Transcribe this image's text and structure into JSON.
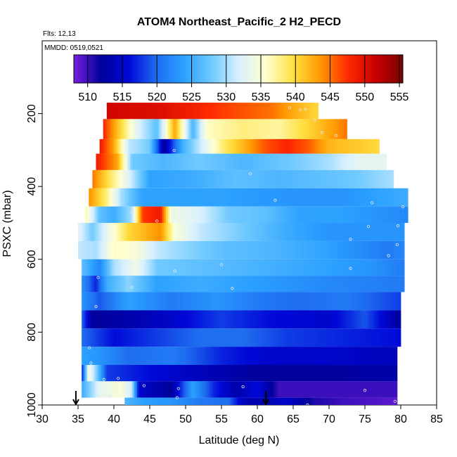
{
  "chart_data": {
    "type": "heatmap",
    "title": "ATOM4 Northeast_Pacific_2 H2_PECD",
    "notes": [
      "Flts: 12,13",
      "MMDD: 0519,0521"
    ],
    "xlabel": "Latitude (deg N)",
    "ylabel": "PSXC (mbar)",
    "xlim": [
      30,
      85
    ],
    "ylim": [
      1000,
      0
    ],
    "x_ticks": [
      30,
      35,
      40,
      45,
      50,
      55,
      60,
      65,
      70,
      75,
      80,
      85
    ],
    "y_ticks": [
      200,
      400,
      600,
      800,
      1000
    ],
    "colorbar": {
      "min": 508,
      "max": 555.5,
      "ticks": [
        510,
        515,
        520,
        525,
        530,
        535,
        540,
        545,
        550,
        555
      ],
      "colors": [
        "#7a1fe0",
        "#00009a",
        "#0008d8",
        "#1e6cf0",
        "#2aa0ff",
        "#6cc8ff",
        "#d8f0ff",
        "#ffffd0",
        "#ffe040",
        "#ff9800",
        "#ff2a00",
        "#c80000",
        "#7a0000"
      ]
    },
    "arrows": [
      {
        "x": 34.7
      },
      {
        "x": 61.2
      }
    ],
    "bands": [
      {
        "p_min": 170,
        "p_max": 215,
        "lat_start": 39.0,
        "lat_end": 68.5,
        "stops": [
          [
            39.0,
            551
          ],
          [
            47.0,
            550
          ],
          [
            55.0,
            547
          ],
          [
            62.0,
            545
          ],
          [
            68.5,
            540
          ]
        ]
      },
      {
        "p_min": 215,
        "p_max": 270,
        "lat_start": 38.5,
        "lat_end": 72.5,
        "stops": [
          [
            38.5,
            548
          ],
          [
            41.0,
            540
          ],
          [
            43.5,
            532
          ],
          [
            46.0,
            527
          ],
          [
            48.5,
            543
          ],
          [
            51.0,
            526
          ],
          [
            53.0,
            536
          ],
          [
            58.0,
            538
          ],
          [
            63.0,
            537
          ],
          [
            68.0,
            541
          ],
          [
            72.5,
            545
          ]
        ]
      },
      {
        "p_min": 270,
        "p_max": 310,
        "lat_start": 38.0,
        "lat_end": 77.0,
        "stops": [
          [
            38.0,
            549
          ],
          [
            40.0,
            543
          ],
          [
            42.0,
            531
          ],
          [
            45.0,
            528
          ],
          [
            47.0,
            512
          ],
          [
            49.5,
            525
          ],
          [
            52.0,
            531
          ],
          [
            55.0,
            538
          ],
          [
            58.0,
            542
          ],
          [
            61.0,
            546
          ],
          [
            64.0,
            548
          ],
          [
            67.0,
            546
          ],
          [
            70.0,
            542
          ],
          [
            77.0,
            540
          ]
        ]
      },
      {
        "p_min": 310,
        "p_max": 355,
        "lat_start": 37.5,
        "lat_end": 78.0,
        "stops": [
          [
            37.5,
            549
          ],
          [
            40.5,
            543
          ],
          [
            42.5,
            528
          ],
          [
            47.0,
            526
          ],
          [
            52.0,
            528
          ],
          [
            58.0,
            526
          ],
          [
            65.0,
            528
          ],
          [
            70.0,
            530
          ],
          [
            74.0,
            533
          ],
          [
            78.0,
            533
          ]
        ]
      },
      {
        "p_min": 355,
        "p_max": 405,
        "lat_start": 37.0,
        "lat_end": 79.0,
        "stops": [
          [
            37.0,
            545
          ],
          [
            39.0,
            540
          ],
          [
            41.5,
            534
          ],
          [
            45.0,
            524
          ],
          [
            51.0,
            525
          ],
          [
            57.0,
            527
          ],
          [
            63.0,
            526
          ],
          [
            69.0,
            527
          ],
          [
            74.0,
            528
          ],
          [
            79.0,
            530
          ]
        ]
      },
      {
        "p_min": 405,
        "p_max": 455,
        "lat_start": 36.5,
        "lat_end": 81.0,
        "stops": [
          [
            36.5,
            544
          ],
          [
            39.0,
            538
          ],
          [
            41.0,
            530
          ],
          [
            44.0,
            524
          ],
          [
            55.0,
            524
          ],
          [
            65.0,
            523
          ],
          [
            72.0,
            523
          ],
          [
            81.0,
            525
          ]
        ]
      },
      {
        "p_min": 455,
        "p_max": 500,
        "lat_start": 36.0,
        "lat_end": 81.0,
        "stops": [
          [
            36.0,
            537
          ],
          [
            38.0,
            527
          ],
          [
            40.0,
            525
          ],
          [
            42.5,
            530
          ],
          [
            44.0,
            547
          ],
          [
            46.5,
            549
          ],
          [
            48.0,
            534
          ],
          [
            52.0,
            532
          ],
          [
            56.0,
            528
          ],
          [
            61.0,
            527
          ],
          [
            66.0,
            524
          ],
          [
            72.0,
            524
          ],
          [
            81.0,
            522
          ]
        ]
      },
      {
        "p_min": 500,
        "p_max": 550,
        "lat_start": 35.0,
        "lat_end": 80.5,
        "stops": [
          [
            35.0,
            533
          ],
          [
            37.0,
            528
          ],
          [
            39.0,
            533
          ],
          [
            42.0,
            540
          ],
          [
            46.5,
            544
          ],
          [
            48.5,
            535
          ],
          [
            52.0,
            531
          ],
          [
            58.0,
            528
          ],
          [
            64.0,
            525
          ],
          [
            70.0,
            523
          ],
          [
            76.0,
            523
          ],
          [
            80.5,
            523
          ]
        ]
      },
      {
        "p_min": 550,
        "p_max": 600,
        "lat_start": 35.0,
        "lat_end": 80.5,
        "stops": [
          [
            35.0,
            531
          ],
          [
            37.5,
            530
          ],
          [
            40.0,
            536
          ],
          [
            43.0,
            535
          ],
          [
            46.0,
            531
          ],
          [
            50.0,
            529
          ],
          [
            55.0,
            527
          ],
          [
            62.0,
            526
          ],
          [
            70.0,
            524
          ],
          [
            78.0,
            521
          ],
          [
            80.5,
            522
          ]
        ]
      },
      {
        "p_min": 600,
        "p_max": 645,
        "lat_start": 35.5,
        "lat_end": 80.5,
        "stops": [
          [
            35.5,
            527
          ],
          [
            38.0,
            522
          ],
          [
            40.0,
            530
          ],
          [
            43.0,
            534
          ],
          [
            46.0,
            528
          ],
          [
            52.0,
            527
          ],
          [
            58.0,
            526
          ],
          [
            64.0,
            525
          ],
          [
            70.0,
            524
          ],
          [
            76.0,
            523
          ],
          [
            80.5,
            521
          ]
        ]
      },
      {
        "p_min": 645,
        "p_max": 690,
        "lat_start": 35.5,
        "lat_end": 80.5,
        "stops": [
          [
            35.5,
            523
          ],
          [
            37.5,
            517
          ],
          [
            39.0,
            525
          ],
          [
            42.0,
            529
          ],
          [
            46.0,
            524
          ],
          [
            52.0,
            525
          ],
          [
            58.0,
            524
          ],
          [
            64.0,
            523
          ],
          [
            70.0,
            522
          ],
          [
            80.5,
            521
          ]
        ]
      },
      {
        "p_min": 690,
        "p_max": 740,
        "lat_start": 35.5,
        "lat_end": 80.0,
        "stops": [
          [
            35.5,
            523
          ],
          [
            38.0,
            519
          ],
          [
            42.0,
            524
          ],
          [
            48.0,
            521
          ],
          [
            54.0,
            523
          ],
          [
            60.0,
            521
          ],
          [
            66.0,
            520
          ],
          [
            72.0,
            521
          ],
          [
            80.0,
            518
          ]
        ]
      },
      {
        "p_min": 740,
        "p_max": 790,
        "lat_start": 35.5,
        "lat_end": 80.0,
        "stops": [
          [
            35.5,
            520
          ],
          [
            37.0,
            512
          ],
          [
            42.0,
            513
          ],
          [
            48.0,
            515
          ],
          [
            55.0,
            518
          ],
          [
            62.0,
            516
          ],
          [
            70.0,
            515
          ],
          [
            75.0,
            519
          ],
          [
            80.0,
            512
          ]
        ]
      },
      {
        "p_min": 790,
        "p_max": 840,
        "lat_start": 35.5,
        "lat_end": 80.0,
        "stops": [
          [
            35.5,
            520
          ],
          [
            40.0,
            516
          ],
          [
            46.0,
            518
          ],
          [
            52.0,
            520
          ],
          [
            58.0,
            520
          ],
          [
            64.0,
            518
          ],
          [
            72.0,
            517
          ],
          [
            80.0,
            516
          ]
        ]
      },
      {
        "p_min": 840,
        "p_max": 890,
        "lat_start": 35.5,
        "lat_end": 79.5,
        "stops": [
          [
            35.5,
            524
          ],
          [
            38.0,
            523
          ],
          [
            42.0,
            520
          ],
          [
            48.0,
            521
          ],
          [
            55.0,
            517
          ],
          [
            62.0,
            515
          ],
          [
            70.0,
            515
          ],
          [
            79.5,
            514
          ]
        ]
      },
      {
        "p_min": 890,
        "p_max": 935,
        "lat_start": 35.5,
        "lat_end": 79.5,
        "stops": [
          [
            35.5,
            516
          ],
          [
            36.5,
            535
          ],
          [
            37.5,
            529
          ],
          [
            39.0,
            518
          ],
          [
            45.0,
            516
          ],
          [
            52.0,
            514
          ],
          [
            60.0,
            512
          ],
          [
            70.0,
            512
          ],
          [
            79.5,
            513
          ]
        ]
      },
      {
        "p_min": 935,
        "p_max": 980,
        "lat_start": 35.5,
        "lat_end": 79.5,
        "stops": [
          [
            35.5,
            525
          ],
          [
            38.0,
            533
          ],
          [
            41.0,
            535
          ],
          [
            42.5,
            531
          ],
          [
            43.5,
            515
          ],
          [
            48.0,
            512
          ],
          [
            51.0,
            524
          ],
          [
            54.0,
            517
          ],
          [
            57.0,
            513
          ],
          [
            60.0,
            516
          ],
          [
            63.0,
            510
          ],
          [
            70.0,
            510
          ],
          [
            79.5,
            510
          ]
        ]
      },
      {
        "p_min": 980,
        "p_max": 1030,
        "lat_start": 41.5,
        "lat_end": 79.5,
        "stops": [
          [
            41.5,
            526
          ],
          [
            44.0,
            524
          ],
          [
            48.0,
            523
          ],
          [
            52.0,
            521
          ],
          [
            56.0,
            520
          ],
          [
            58.0,
            514
          ],
          [
            61.0,
            513
          ],
          [
            64.0,
            515
          ],
          [
            68.0,
            511
          ],
          [
            72.0,
            510
          ],
          [
            79.5,
            509
          ]
        ]
      }
    ],
    "markers": [
      [
        38.6,
        930
      ],
      [
        40.6,
        927
      ],
      [
        39.5,
        975
      ],
      [
        44.2,
        947
      ],
      [
        48.8,
        980
      ],
      [
        49.0,
        955
      ],
      [
        58.0,
        950
      ],
      [
        75.0,
        960
      ],
      [
        79.2,
        990
      ],
      [
        67.0,
        1000
      ],
      [
        48.4,
        301
      ],
      [
        55.0,
        302
      ],
      [
        59.0,
        365
      ],
      [
        71.0,
        260
      ],
      [
        74.7,
        320
      ],
      [
        64.5,
        184
      ],
      [
        66.0,
        190
      ],
      [
        66.7,
        188
      ],
      [
        68.0,
        218
      ],
      [
        69.0,
        252
      ],
      [
        42.5,
        470
      ],
      [
        46.0,
        495
      ],
      [
        62.5,
        438
      ],
      [
        76.0,
        445
      ],
      [
        80.3,
        456
      ],
      [
        73.0,
        545
      ],
      [
        75.5,
        510
      ],
      [
        79.6,
        508
      ],
      [
        78.3,
        590
      ],
      [
        79.5,
        560
      ],
      [
        55.0,
        615
      ],
      [
        73.0,
        625
      ],
      [
        48.5,
        632
      ],
      [
        37.8,
        650
      ],
      [
        42.5,
        677
      ],
      [
        56.5,
        680
      ],
      [
        37.5,
        730
      ],
      [
        36.6,
        843
      ],
      [
        36.8,
        885
      ]
    ]
  }
}
